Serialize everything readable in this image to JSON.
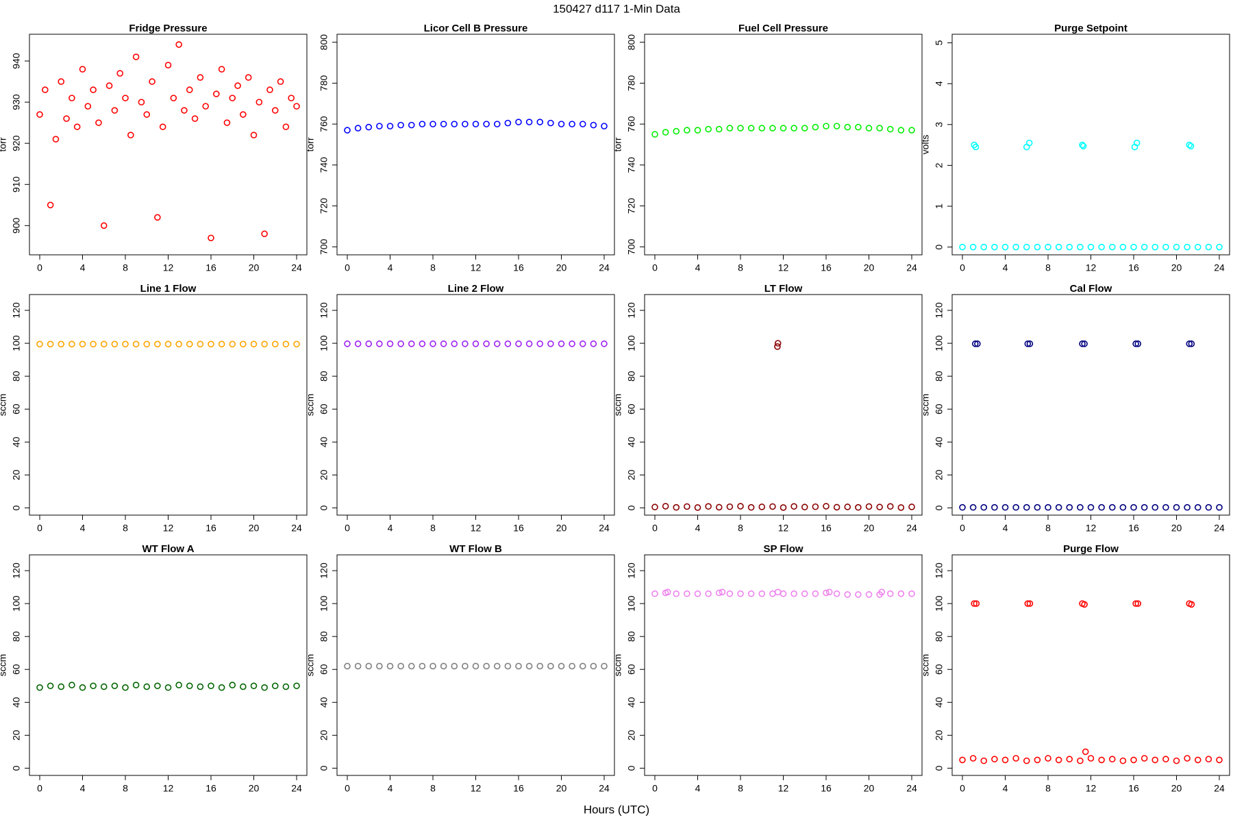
{
  "title": "150427   d117   1-Min Data",
  "x_label": "Hours (UTC)",
  "chart_data": [
    {
      "type": "scatter",
      "title": "Fridge Pressure",
      "y_label": "torr",
      "color": "#ff0000",
      "x": [
        0,
        0.5,
        1,
        1.5,
        2,
        2.5,
        3,
        3.5,
        4,
        4.5,
        5,
        5.5,
        6,
        6.5,
        7,
        7.5,
        8,
        8.5,
        9,
        9.5,
        10,
        10.5,
        11,
        11.5,
        12,
        12.5,
        13,
        13.5,
        14,
        14.5,
        15,
        15.5,
        16,
        16.5,
        17,
        17.5,
        18,
        18.5,
        19,
        19.5,
        20,
        20.5,
        21,
        21.5,
        22,
        22.5,
        23,
        23.5,
        24
      ],
      "values": [
        927,
        933,
        905,
        921,
        935,
        926,
        931,
        924,
        938,
        929,
        933,
        925,
        900,
        934,
        928,
        937,
        931,
        922,
        941,
        930,
        927,
        935,
        902,
        924,
        939,
        931,
        944,
        928,
        933,
        926,
        936,
        929,
        897,
        932,
        938,
        925,
        931,
        934,
        927,
        936,
        922,
        930,
        898,
        933,
        928,
        935,
        924,
        931,
        929
      ],
      "xlim": [
        -0.96,
        24.96
      ],
      "ylim": [
        892.9,
        946.5
      ],
      "xticks": [
        0,
        4,
        8,
        12,
        16,
        20,
        24
      ],
      "yticks": [
        900,
        910,
        920,
        930,
        940
      ]
    },
    {
      "type": "scatter",
      "title": "Licor Cell B Pressure",
      "y_label": "torr",
      "color": "#0000ff",
      "x": [
        0,
        1,
        2,
        3,
        4,
        5,
        6,
        7,
        8,
        9,
        10,
        11,
        12,
        13,
        14,
        15,
        16,
        17,
        18,
        19,
        20,
        21,
        22,
        23,
        24
      ],
      "values": [
        757,
        758,
        758.5,
        759,
        759,
        759.5,
        759.5,
        760,
        760,
        760,
        760,
        760,
        760,
        760,
        760,
        760.5,
        761,
        761,
        761,
        760.5,
        760,
        760,
        760,
        759.5,
        759
      ],
      "xlim": [
        -0.96,
        24.96
      ],
      "ylim": [
        696.1,
        803.9
      ],
      "xticks": [
        0,
        4,
        8,
        12,
        16,
        20,
        24
      ],
      "yticks": [
        700,
        720,
        740,
        760,
        780,
        800
      ]
    },
    {
      "type": "scatter",
      "title": "Fuel Cell Pressure",
      "y_label": "torr",
      "color": "#00ee00",
      "x": [
        0,
        1,
        2,
        3,
        4,
        5,
        6,
        7,
        8,
        9,
        10,
        11,
        12,
        13,
        14,
        15,
        16,
        17,
        18,
        19,
        20,
        21,
        22,
        23,
        24
      ],
      "values": [
        755,
        756,
        756.5,
        757,
        757,
        757.5,
        757.5,
        758,
        758,
        758,
        758,
        758,
        758,
        758,
        758,
        758.5,
        759,
        759,
        758.5,
        758.5,
        758,
        758,
        757.5,
        757,
        757
      ],
      "xlim": [
        -0.96,
        24.96
      ],
      "ylim": [
        696.1,
        803.9
      ],
      "xticks": [
        0,
        4,
        8,
        12,
        16,
        20,
        24
      ],
      "yticks": [
        700,
        720,
        740,
        760,
        780,
        800
      ]
    },
    {
      "type": "scatter",
      "title": "Purge Setpoint",
      "y_label": "volts",
      "color": "#00ffff",
      "x": [
        0,
        1,
        2,
        3,
        4,
        5,
        6,
        7,
        8,
        9,
        10,
        11,
        12,
        13,
        14,
        15,
        16,
        17,
        18,
        19,
        20,
        21,
        22,
        23,
        24,
        1.1,
        1.25,
        6.0,
        6.25,
        11.2,
        11.3,
        16.1,
        16.3,
        21.2,
        21.35
      ],
      "values": [
        0,
        0,
        0,
        0,
        0,
        0,
        0,
        0,
        0,
        0,
        0,
        0,
        0,
        0,
        0,
        0,
        0,
        0,
        0,
        0,
        0,
        0,
        0,
        0,
        0,
        2.5,
        2.45,
        2.45,
        2.55,
        2.5,
        2.47,
        2.45,
        2.55,
        2.5,
        2.47
      ],
      "xlim": [
        -0.96,
        24.96
      ],
      "ylim": [
        -0.19,
        5.21
      ],
      "xticks": [
        0,
        4,
        8,
        12,
        16,
        20,
        24
      ],
      "yticks": [
        0,
        1,
        2,
        3,
        4,
        5
      ]
    },
    {
      "type": "scatter",
      "title": "Line 1 Flow",
      "y_label": "sccm",
      "color": "#ffa500",
      "x": [
        0,
        1,
        2,
        3,
        4,
        5,
        6,
        7,
        8,
        9,
        10,
        11,
        12,
        13,
        14,
        15,
        16,
        17,
        18,
        19,
        20,
        21,
        22,
        23,
        24
      ],
      "values": [
        99.5,
        99.5,
        99.5,
        99.5,
        99.5,
        99.5,
        99.5,
        99.5,
        99.5,
        99.5,
        99.5,
        99.5,
        99.5,
        99.5,
        99.5,
        99.5,
        99.5,
        99.5,
        99.5,
        99.5,
        99.5,
        99.5,
        99.5,
        99.5,
        99.5
      ],
      "xlim": [
        -0.96,
        24.96
      ],
      "ylim": [
        -4.4,
        129.6
      ],
      "xticks": [
        0,
        4,
        8,
        12,
        16,
        20,
        24
      ],
      "yticks": [
        0,
        20,
        40,
        60,
        80,
        100,
        120
      ]
    },
    {
      "type": "scatter",
      "title": "Line 2 Flow",
      "y_label": "sccm",
      "color": "#a020f0",
      "x": [
        0,
        1,
        2,
        3,
        4,
        5,
        6,
        7,
        8,
        9,
        10,
        11,
        12,
        13,
        14,
        15,
        16,
        17,
        18,
        19,
        20,
        21,
        22,
        23,
        24
      ],
      "values": [
        99.7,
        99.7,
        99.7,
        99.7,
        99.7,
        99.7,
        99.7,
        99.7,
        99.7,
        99.7,
        99.7,
        99.7,
        99.7,
        99.7,
        99.7,
        99.7,
        99.7,
        99.7,
        99.7,
        99.7,
        99.7,
        99.7,
        99.7,
        99.7,
        99.7
      ],
      "xlim": [
        -0.96,
        24.96
      ],
      "ylim": [
        -4.4,
        129.6
      ],
      "xticks": [
        0,
        4,
        8,
        12,
        16,
        20,
        24
      ],
      "yticks": [
        0,
        20,
        40,
        60,
        80,
        100,
        120
      ]
    },
    {
      "type": "scatter",
      "title": "LT Flow",
      "y_label": "sccm",
      "color": "#8b0000",
      "x": [
        0,
        1,
        2,
        3,
        4,
        5,
        6,
        7,
        8,
        9,
        10,
        11,
        12,
        13,
        14,
        15,
        16,
        17,
        18,
        19,
        20,
        21,
        22,
        23,
        24,
        11.5,
        11.45
      ],
      "values": [
        0.5,
        1,
        0.3,
        0.8,
        0.2,
        0.9,
        0.4,
        0.7,
        1,
        0.3,
        0.6,
        0.8,
        0.2,
        0.9,
        0.5,
        0.7,
        1,
        0.4,
        0.6,
        0.3,
        0.8,
        0.5,
        0.9,
        0.2,
        0.6,
        100,
        98
      ],
      "xlim": [
        -0.96,
        24.96
      ],
      "ylim": [
        -4.4,
        129.6
      ],
      "xticks": [
        0,
        4,
        8,
        12,
        16,
        20,
        24
      ],
      "yticks": [
        0,
        20,
        40,
        60,
        80,
        100,
        120
      ]
    },
    {
      "type": "scatter",
      "title": "Cal Flow",
      "y_label": "sccm",
      "color": "#000080",
      "x": [
        0,
        1,
        2,
        3,
        4,
        5,
        6,
        7,
        8,
        9,
        10,
        11,
        12,
        13,
        14,
        15,
        16,
        17,
        18,
        19,
        20,
        21,
        22,
        23,
        24,
        1.2,
        1.4,
        6.1,
        6.3,
        11.2,
        11.4,
        16.2,
        16.4,
        21.2,
        21.4
      ],
      "values": [
        0.3,
        0.3,
        0.3,
        0.3,
        0.3,
        0.3,
        0.3,
        0.3,
        0.3,
        0.3,
        0.3,
        0.3,
        0.3,
        0.3,
        0.3,
        0.3,
        0.3,
        0.3,
        0.3,
        0.3,
        0.3,
        0.3,
        0.3,
        0.3,
        0.3,
        99.7,
        99.7,
        99.7,
        99.7,
        99.7,
        99.7,
        99.7,
        99.7,
        99.7,
        99.7
      ],
      "xlim": [
        -0.96,
        24.96
      ],
      "ylim": [
        -4.4,
        129.6
      ],
      "xticks": [
        0,
        4,
        8,
        12,
        16,
        20,
        24
      ],
      "yticks": [
        0,
        20,
        40,
        60,
        80,
        100,
        120
      ]
    },
    {
      "type": "scatter",
      "title": "WT Flow A",
      "y_label": "sccm",
      "color": "#006400",
      "x": [
        0,
        1,
        2,
        3,
        4,
        5,
        6,
        7,
        8,
        9,
        10,
        11,
        12,
        13,
        14,
        15,
        16,
        17,
        18,
        19,
        20,
        21,
        22,
        23,
        24
      ],
      "values": [
        49,
        50,
        49.5,
        50.5,
        49,
        50,
        49.5,
        50,
        49,
        50.5,
        49.5,
        50,
        49,
        50.5,
        50,
        49.5,
        50,
        49,
        50.5,
        49.5,
        50,
        49,
        50,
        49.5,
        50
      ],
      "xlim": [
        -0.96,
        24.96
      ],
      "ylim": [
        -4.4,
        129.6
      ],
      "xticks": [
        0,
        4,
        8,
        12,
        16,
        20,
        24
      ],
      "yticks": [
        0,
        20,
        40,
        60,
        80,
        100,
        120
      ]
    },
    {
      "type": "scatter",
      "title": "WT Flow B",
      "y_label": "sccm",
      "color": "#808080",
      "x": [
        0,
        1,
        2,
        3,
        4,
        5,
        6,
        7,
        8,
        9,
        10,
        11,
        12,
        13,
        14,
        15,
        16,
        17,
        18,
        19,
        20,
        21,
        22,
        23,
        24
      ],
      "values": [
        62,
        62,
        62,
        62,
        62,
        62,
        62,
        62,
        62,
        62,
        62,
        62,
        62,
        62,
        62,
        62,
        62,
        62,
        62,
        62,
        62,
        62,
        62,
        62,
        62
      ],
      "xlim": [
        -0.96,
        24.96
      ],
      "ylim": [
        -4.4,
        129.6
      ],
      "xticks": [
        0,
        4,
        8,
        12,
        16,
        20,
        24
      ],
      "yticks": [
        0,
        20,
        40,
        60,
        80,
        100,
        120
      ]
    },
    {
      "type": "scatter",
      "title": "SP Flow",
      "y_label": "sccm",
      "color": "#ee82ee",
      "x": [
        0,
        1,
        2,
        3,
        4,
        5,
        6,
        7,
        8,
        9,
        10,
        11,
        12,
        13,
        14,
        15,
        16,
        17,
        18,
        19,
        20,
        21,
        22,
        23,
        24,
        1.2,
        6.3,
        11.5,
        16.3,
        21.2
      ],
      "values": [
        106,
        106.5,
        106,
        106,
        106,
        106,
        106.5,
        106,
        106,
        106,
        106,
        106,
        106,
        106,
        106,
        106,
        106.5,
        106,
        105.5,
        105.5,
        105.5,
        105.5,
        106,
        106,
        106,
        107,
        107,
        107,
        107,
        107
      ],
      "xlim": [
        -0.96,
        24.96
      ],
      "ylim": [
        -4.4,
        129.6
      ],
      "xticks": [
        0,
        4,
        8,
        12,
        16,
        20,
        24
      ],
      "yticks": [
        0,
        20,
        40,
        60,
        80,
        100,
        120
      ]
    },
    {
      "type": "scatter",
      "title": "Purge Flow",
      "y_label": "sccm",
      "color": "#ff0000",
      "x": [
        0,
        1,
        2,
        3,
        4,
        5,
        6,
        7,
        8,
        9,
        10,
        11,
        12,
        13,
        14,
        15,
        16,
        17,
        18,
        19,
        20,
        21,
        22,
        23,
        24,
        1.1,
        1.3,
        6.1,
        6.3,
        11.2,
        11.4,
        16.2,
        16.4,
        21.2,
        21.4,
        11.5
      ],
      "values": [
        5,
        6,
        4.5,
        5.5,
        5,
        6,
        4.5,
        5,
        6,
        5,
        5.5,
        4.5,
        6,
        5,
        5.5,
        4.5,
        5,
        6,
        5,
        5.5,
        4.5,
        6,
        5,
        5.5,
        5,
        100,
        100,
        100,
        100,
        100,
        99.5,
        100,
        100,
        100,
        99.5,
        10
      ],
      "xlim": [
        -0.96,
        24.96
      ],
      "ylim": [
        -4.4,
        129.6
      ],
      "xticks": [
        0,
        4,
        8,
        12,
        16,
        20,
        24
      ],
      "yticks": [
        0,
        20,
        40,
        60,
        80,
        100,
        120
      ]
    }
  ]
}
